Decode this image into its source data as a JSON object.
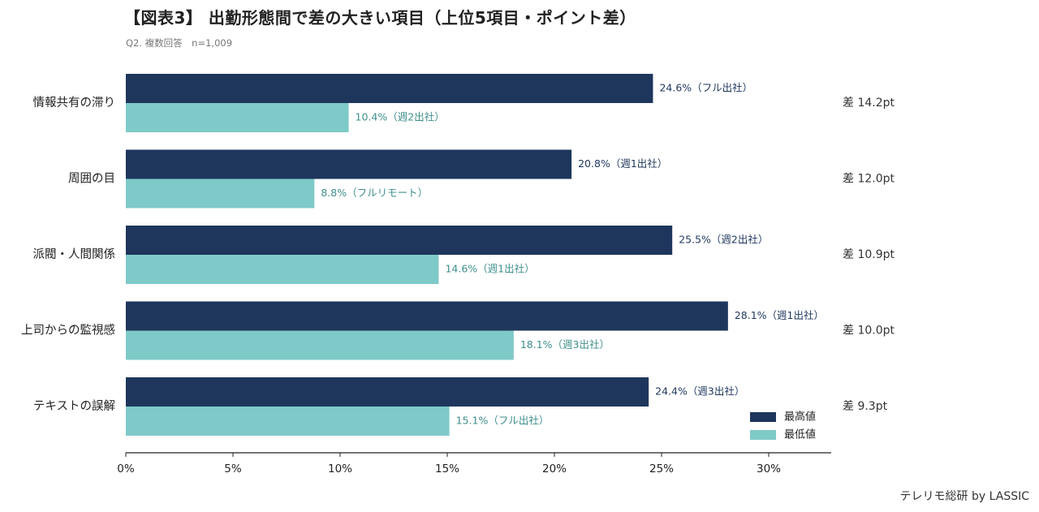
{
  "title": "【図表3】 出勤形態間で差の大きい項目（上位5項目・ポイント差）",
  "subtitle": "Q2. 複数回答　n=1,009",
  "credit": "テレリモ総研 by LASSIC",
  "colors": {
    "high": "#1e365c",
    "low": "#7ecac8",
    "low_label": "#3e8f8c",
    "axis": "#222222"
  },
  "chart_data": {
    "type": "bar",
    "orientation": "horizontal",
    "categories": [
      "情報共有の滞り",
      "周囲の目",
      "派閥・人間関係",
      "上司からの監視感",
      "テキストの誤解"
    ],
    "series": [
      {
        "name": "最高値",
        "values": [
          24.6,
          20.8,
          25.5,
          28.1,
          24.4
        ]
      },
      {
        "name": "最低値",
        "values": [
          10.4,
          8.8,
          14.6,
          18.1,
          15.1
        ]
      }
    ],
    "bar_labels": {
      "high": [
        "24.6%（フル出社）",
        "20.8%（週1出社）",
        "25.5%（週2出社）",
        "28.1%（週1出社）",
        "24.4%（週3出社）"
      ],
      "low": [
        "10.4%（週2出社）",
        "8.8%（フルリモート）",
        "14.6%（週1出社）",
        "18.1%（週3出社）",
        "15.1%（フル出社）"
      ]
    },
    "differences": [
      "差 14.2pt",
      "差 12.0pt",
      "差 10.9pt",
      "差 10.0pt",
      "差 9.3pt"
    ],
    "x_ticks": [
      0,
      5,
      10,
      15,
      20,
      25,
      30
    ],
    "x_tick_labels": [
      "0%",
      "5%",
      "10%",
      "15%",
      "20%",
      "25%",
      "30%"
    ],
    "xlim": [
      0,
      33
    ],
    "legend": {
      "position": "bottom-right",
      "labels": [
        "最高値",
        "最低値"
      ]
    },
    "grid": false
  }
}
